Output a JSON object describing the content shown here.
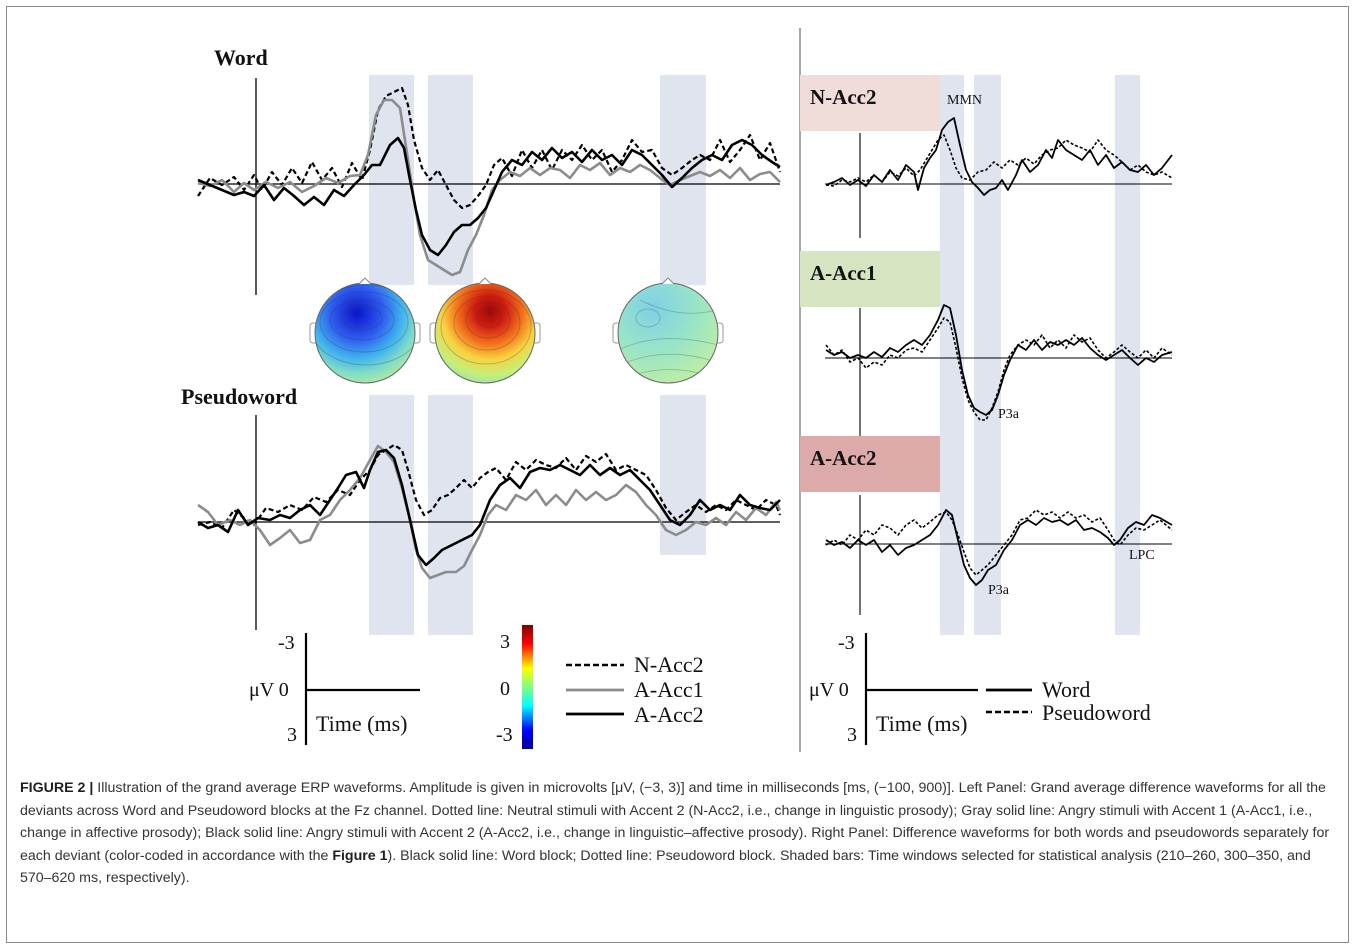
{
  "panel_titles": {
    "word": "Word",
    "pseudoword": "Pseudoword"
  },
  "right_labels": [
    {
      "text": "N-Acc2",
      "color": "#f0dcd8"
    },
    {
      "text": "A-Acc1",
      "color": "#d7e4c1"
    },
    {
      "text": "A-Acc2",
      "color": "#dcaaa8"
    }
  ],
  "annotations": {
    "mmn": "MMN",
    "p3a_1": "P3a",
    "p3a_2": "P3a",
    "lpc": "LPC"
  },
  "scale_left": {
    "top": "-3",
    "mid": "μV 0",
    "bottom": "3",
    "xlabel": "Time (ms)"
  },
  "scale_right": {
    "top": "-3",
    "mid": "μV 0",
    "bottom": "3",
    "xlabel": "Time (ms)"
  },
  "colorbar": {
    "top": "3",
    "mid": "0",
    "bottom": "-3"
  },
  "legend_left": [
    "N-Acc2",
    "A-Acc1",
    "A-Acc2"
  ],
  "legend_right": [
    "Word",
    "Pseudoword"
  ],
  "colors": {
    "shade": "#dfe4ee",
    "gray_line": "#8c8c8c",
    "black_line": "#000000"
  },
  "caption": {
    "label": "FIGURE 2 |",
    "part1": " Illustration of the grand average ERP waveforms. Amplitude is given in microvolts [μV, (−3, 3)] and time in milliseconds [ms, (−100, 900)]. Left Panel: Grand average difference waveforms for all the deviants across Word and Pseudoword blocks at the Fz channel. Dotted line: Neutral stimuli with Accent 2 (N-Acc2, i.e., change in linguistic prosody); Gray solid line: Angry stimuli with Accent 1 (A-Acc1, i.e., change in affective prosody); Black solid line: Angry stimuli with Accent 2 (A-Acc2, i.e., change in linguistic–affective prosody). Right Panel: Difference waveforms for both words and pseudowords separately for each deviant (color-coded in accordance with the ",
    "figref": "Figure 1",
    "part2": "). Black solid line: Word block; Dotted line: Pseudoword block. Shaded bars: Time windows selected for statistical analysis (210–260, 300–350, and 570–620 ms, respectively)."
  }
}
